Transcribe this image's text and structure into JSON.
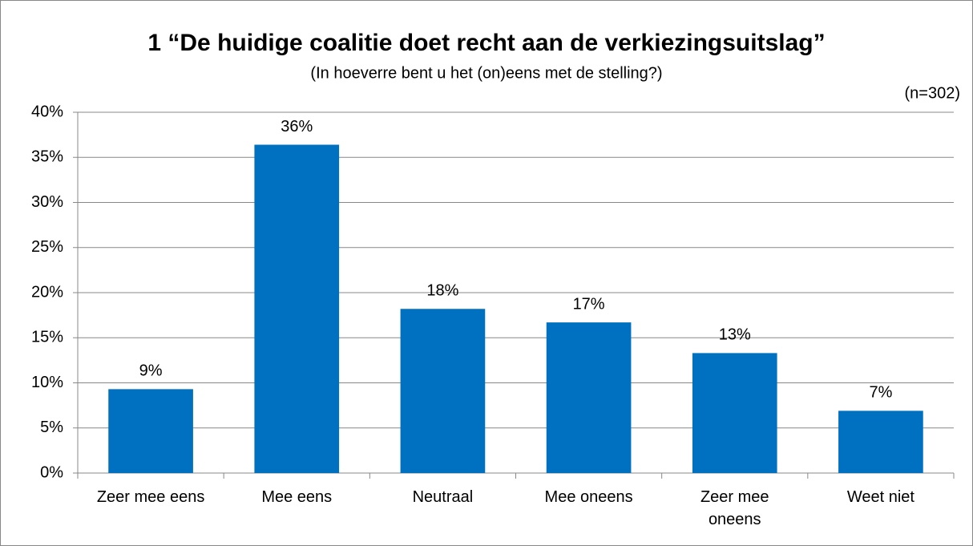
{
  "chart_data": {
    "type": "bar",
    "title": "1 “De huidige coalitie doet recht aan de verkiezingsuitslag”",
    "subtitle": "(In hoeverre bent u het (on)eens met de stelling?)",
    "annotation": "(n=302)",
    "categories": [
      "Zeer mee eens",
      "Mee eens",
      "Neutraal",
      "Mee oneens",
      "Zeer mee oneens",
      "Weet niet"
    ],
    "values": [
      9.3,
      36.4,
      18.2,
      16.7,
      13.3,
      6.9
    ],
    "value_labels": [
      "9%",
      "36%",
      "18%",
      "17%",
      "13%",
      "7%"
    ],
    "color": "#0070c0",
    "ylim": [
      0,
      40
    ],
    "yticks": [
      {
        "value": 0,
        "label": "0%"
      },
      {
        "value": 5,
        "label": "5%"
      },
      {
        "value": 10,
        "label": "10%"
      },
      {
        "value": 15,
        "label": "15%"
      },
      {
        "value": 20,
        "label": "20%"
      },
      {
        "value": 25,
        "label": "25%"
      },
      {
        "value": 30,
        "label": "30%"
      },
      {
        "value": 35,
        "label": "35%"
      },
      {
        "value": 40,
        "label": "40%"
      }
    ],
    "grid": true
  }
}
